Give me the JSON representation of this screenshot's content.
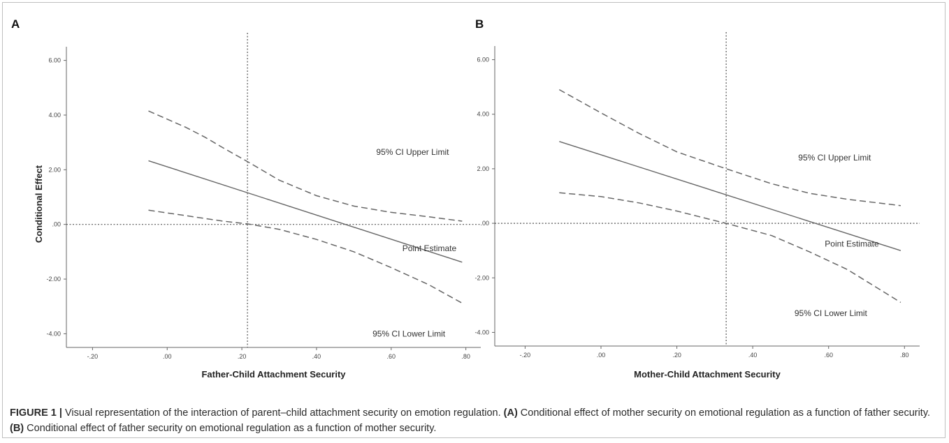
{
  "chart_data": [
    {
      "type": "line",
      "panel_label": "A",
      "title": "",
      "xlabel": "Father-Child Attachment Security",
      "ylabel": "Conditional Effect",
      "xlim": [
        -0.27,
        0.84
      ],
      "ylim": [
        -4.5,
        6.5
      ],
      "x_ticks": [
        -0.2,
        0.0,
        0.2,
        0.4,
        0.6,
        0.8
      ],
      "x_tick_labels": [
        "-.20",
        ".00",
        ".20",
        ".40",
        ".60",
        ".80"
      ],
      "y_ticks": [
        -4,
        -2,
        0,
        2,
        4,
        6
      ],
      "y_tick_labels": [
        "-4.00",
        "-2.00",
        ".00",
        "2.00",
        "4.00",
        "6.00"
      ],
      "grid": false,
      "reference_lines": {
        "x": 0.215,
        "y": 0
      },
      "series": [
        {
          "name": "95% CI Upper Limit",
          "style": "dashed",
          "x": [
            -0.05,
            0.05,
            0.1,
            0.15,
            0.215,
            0.3,
            0.4,
            0.5,
            0.6,
            0.7,
            0.79
          ],
          "y": [
            4.15,
            3.55,
            3.2,
            2.8,
            2.3,
            1.62,
            1.05,
            0.67,
            0.44,
            0.28,
            0.12
          ]
        },
        {
          "name": "Point Estimate",
          "style": "solid",
          "x": [
            -0.05,
            0.79
          ],
          "y": [
            2.33,
            -1.38
          ]
        },
        {
          "name": "95% CI Lower Limit",
          "style": "dashed",
          "x": [
            -0.05,
            0.05,
            0.1,
            0.15,
            0.215,
            0.3,
            0.4,
            0.5,
            0.6,
            0.7,
            0.79
          ],
          "y": [
            0.52,
            0.32,
            0.22,
            0.12,
            0.02,
            -0.18,
            -0.55,
            -1.0,
            -1.58,
            -2.2,
            -2.88
          ]
        }
      ],
      "annotations": [
        "95% CI Upper Limit",
        "Point Estimate",
        "95% CI Lower Limit"
      ],
      "annotation_positions": [
        [
          0.56,
          2.55
        ],
        [
          0.63,
          -0.98
        ],
        [
          0.55,
          -4.1
        ]
      ]
    },
    {
      "type": "line",
      "panel_label": "B",
      "title": "",
      "xlabel": "Mother-Child Attachment Security",
      "ylabel": "",
      "xlim": [
        -0.28,
        0.84
      ],
      "ylim": [
        -4.5,
        6.5
      ],
      "x_ticks": [
        -0.2,
        0.0,
        0.2,
        0.4,
        0.6,
        0.8
      ],
      "x_tick_labels": [
        "-.20",
        ".00",
        ".20",
        ".40",
        ".60",
        ".80"
      ],
      "y_ticks": [
        -4,
        -2,
        0,
        2,
        4,
        6
      ],
      "y_tick_labels": [
        "-4.00",
        "-2.00",
        ".00",
        "2.00",
        "4.00",
        "6.00"
      ],
      "grid": false,
      "reference_lines": {
        "x": 0.33,
        "y": 0
      },
      "series": [
        {
          "name": "95% CI Upper Limit",
          "style": "dashed",
          "x": [
            -0.11,
            0.0,
            0.1,
            0.2,
            0.33,
            0.45,
            0.55,
            0.65,
            0.79
          ],
          "y": [
            4.9,
            4.05,
            3.3,
            2.62,
            2.0,
            1.45,
            1.1,
            0.88,
            0.65
          ]
        },
        {
          "name": "Point Estimate",
          "style": "solid",
          "x": [
            -0.11,
            0.79
          ],
          "y": [
            3.0,
            -1.0
          ]
        },
        {
          "name": "95% CI Lower Limit",
          "style": "dashed",
          "x": [
            -0.11,
            0.0,
            0.1,
            0.2,
            0.3,
            0.33,
            0.45,
            0.55,
            0.65,
            0.79
          ],
          "y": [
            1.12,
            0.98,
            0.75,
            0.45,
            0.1,
            0.0,
            -0.45,
            -1.05,
            -1.7,
            -2.9
          ]
        }
      ],
      "annotations": [
        "95% CI Upper Limit",
        "Point Estimate",
        "95% CI Lower Limit"
      ],
      "annotation_positions": [
        [
          0.52,
          2.3
        ],
        [
          0.59,
          -0.85
        ],
        [
          0.51,
          -3.4
        ]
      ]
    }
  ],
  "caption": {
    "label": "FIGURE 1 |",
    "text_intro": " Visual representation of the interaction of parent–child attachment security on emotion regulation. ",
    "part_a_label": "(A)",
    "part_a_text": " Conditional effect of mother security on emotional regulation as a function of father security. ",
    "part_b_label": "(B)",
    "part_b_text": " Conditional effect of father security on emotional regulation as a function of mother security."
  }
}
